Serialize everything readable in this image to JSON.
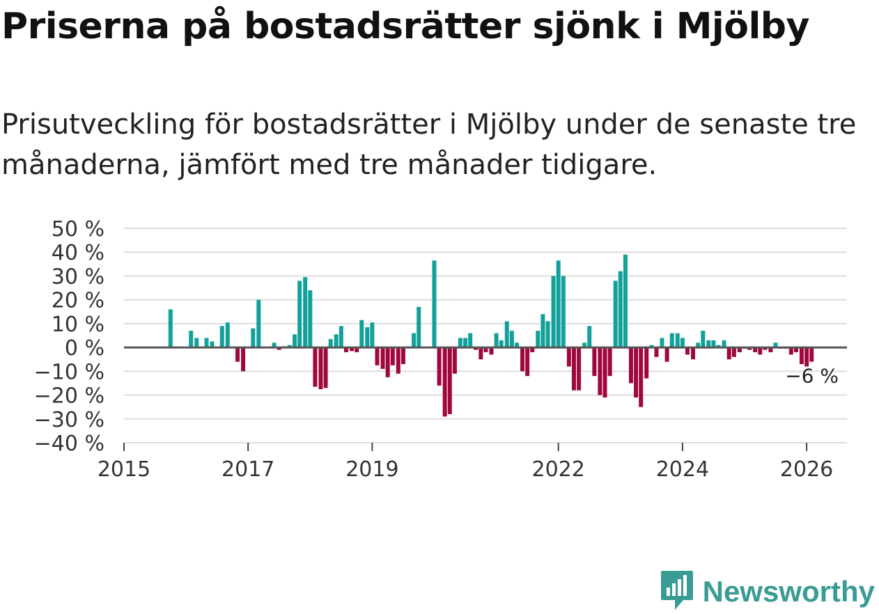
{
  "header": {
    "title": "Priserna på bostadsrätter sjönk i Mjölby",
    "subtitle": "Prisutveckling för bostadsrätter i Mjölby under de senaste tre månaderna, jämfört med tre månader tidigare."
  },
  "brand": {
    "name": "Newsworthy",
    "color": "#3a9b95"
  },
  "colors": {
    "positive": "#12a19a",
    "negative": "#a0073f",
    "grid": "#dddddd",
    "zero": "#555555"
  },
  "chart_data": {
    "type": "bar",
    "title": "Priserna på bostadsrätter sjönk i Mjölby",
    "xlabel": "",
    "ylabel": "",
    "ylim": [
      -40,
      50
    ],
    "y_ticks": [
      "50 %",
      "40 %",
      "30 %",
      "20 %",
      "10 %",
      "0 %",
      "−10 %",
      "−20 %",
      "−30 %",
      "−40 %"
    ],
    "y_tick_values": [
      50,
      40,
      30,
      20,
      10,
      0,
      -10,
      -20,
      -30,
      -40
    ],
    "x_ticks": [
      "2015",
      "2017",
      "2019",
      "2022",
      "2024",
      "2026"
    ],
    "x_tick_values": [
      2015.0,
      2017.0,
      2019.0,
      2022.0,
      2024.0,
      2026.0
    ],
    "x_range": [
      2015.0,
      2026.65
    ],
    "grid": true,
    "last_value_label": "−6 %",
    "series": [
      {
        "name": "Prisutveckling",
        "points": [
          [
            2015.75,
            16
          ],
          [
            2016.08,
            7
          ],
          [
            2016.17,
            4
          ],
          [
            2016.33,
            4
          ],
          [
            2016.42,
            2.5
          ],
          [
            2016.58,
            9
          ],
          [
            2016.67,
            10.5
          ],
          [
            2016.83,
            -6
          ],
          [
            2016.92,
            -10
          ],
          [
            2017.08,
            8
          ],
          [
            2017.17,
            20
          ],
          [
            2017.42,
            2
          ],
          [
            2017.5,
            -1
          ],
          [
            2017.58,
            0.5
          ],
          [
            2017.67,
            1
          ],
          [
            2017.75,
            5.5
          ],
          [
            2017.83,
            28
          ],
          [
            2017.92,
            29.5
          ],
          [
            2018.0,
            24
          ],
          [
            2018.08,
            -16.5
          ],
          [
            2018.17,
            -17.5
          ],
          [
            2018.25,
            -17
          ],
          [
            2018.33,
            3.5
          ],
          [
            2018.42,
            5.5
          ],
          [
            2018.5,
            9
          ],
          [
            2018.58,
            -2
          ],
          [
            2018.67,
            -1.5
          ],
          [
            2018.75,
            -2
          ],
          [
            2018.83,
            11.5
          ],
          [
            2018.92,
            8.5
          ],
          [
            2019.0,
            10.5
          ],
          [
            2019.08,
            -7.5
          ],
          [
            2019.17,
            -9
          ],
          [
            2019.25,
            -12.5
          ],
          [
            2019.33,
            -7.5
          ],
          [
            2019.42,
            -11
          ],
          [
            2019.5,
            -7
          ],
          [
            2019.58,
            0.5
          ],
          [
            2019.67,
            6
          ],
          [
            2019.75,
            17
          ],
          [
            2020.0,
            36.5
          ],
          [
            2020.08,
            -16
          ],
          [
            2020.17,
            -29
          ],
          [
            2020.25,
            -28
          ],
          [
            2020.33,
            -11
          ],
          [
            2020.42,
            4
          ],
          [
            2020.5,
            4
          ],
          [
            2020.58,
            6
          ],
          [
            2020.67,
            -1
          ],
          [
            2020.75,
            -5
          ],
          [
            2020.83,
            -2
          ],
          [
            2020.92,
            -3
          ],
          [
            2021.0,
            6
          ],
          [
            2021.08,
            3
          ],
          [
            2021.17,
            11
          ],
          [
            2021.25,
            7
          ],
          [
            2021.33,
            2
          ],
          [
            2021.42,
            -10
          ],
          [
            2021.5,
            -12
          ],
          [
            2021.58,
            -2
          ],
          [
            2021.67,
            7
          ],
          [
            2021.75,
            14
          ],
          [
            2021.83,
            11
          ],
          [
            2021.92,
            30
          ],
          [
            2022.0,
            36.5
          ],
          [
            2022.08,
            30
          ],
          [
            2022.17,
            -8
          ],
          [
            2022.25,
            -18
          ],
          [
            2022.33,
            -18
          ],
          [
            2022.42,
            2
          ],
          [
            2022.5,
            9
          ],
          [
            2022.58,
            -12
          ],
          [
            2022.67,
            -20
          ],
          [
            2022.75,
            -21
          ],
          [
            2022.83,
            -12
          ],
          [
            2022.92,
            28
          ],
          [
            2023.0,
            32
          ],
          [
            2023.08,
            39
          ],
          [
            2023.17,
            -15
          ],
          [
            2023.25,
            -21
          ],
          [
            2023.33,
            -25
          ],
          [
            2023.42,
            -13
          ],
          [
            2023.5,
            1
          ],
          [
            2023.58,
            -4
          ],
          [
            2023.67,
            4
          ],
          [
            2023.75,
            -6
          ],
          [
            2023.83,
            6
          ],
          [
            2023.92,
            6
          ],
          [
            2024.0,
            4
          ],
          [
            2024.08,
            -3
          ],
          [
            2024.17,
            -5
          ],
          [
            2024.25,
            2
          ],
          [
            2024.33,
            7
          ],
          [
            2024.42,
            3
          ],
          [
            2024.5,
            3
          ],
          [
            2024.58,
            1
          ],
          [
            2024.67,
            3
          ],
          [
            2024.75,
            -5
          ],
          [
            2024.83,
            -4
          ],
          [
            2024.92,
            -2
          ],
          [
            2025.0,
            -0.5
          ],
          [
            2025.08,
            -1
          ],
          [
            2025.17,
            -2
          ],
          [
            2025.25,
            -3
          ],
          [
            2025.33,
            -1
          ],
          [
            2025.42,
            -2
          ],
          [
            2025.5,
            2
          ],
          [
            2025.58,
            -0.5
          ],
          [
            2025.67,
            -0.5
          ],
          [
            2025.75,
            -3
          ],
          [
            2025.83,
            -2
          ],
          [
            2025.92,
            -7
          ],
          [
            2026.0,
            -8
          ],
          [
            2026.08,
            -6
          ]
        ]
      }
    ]
  }
}
